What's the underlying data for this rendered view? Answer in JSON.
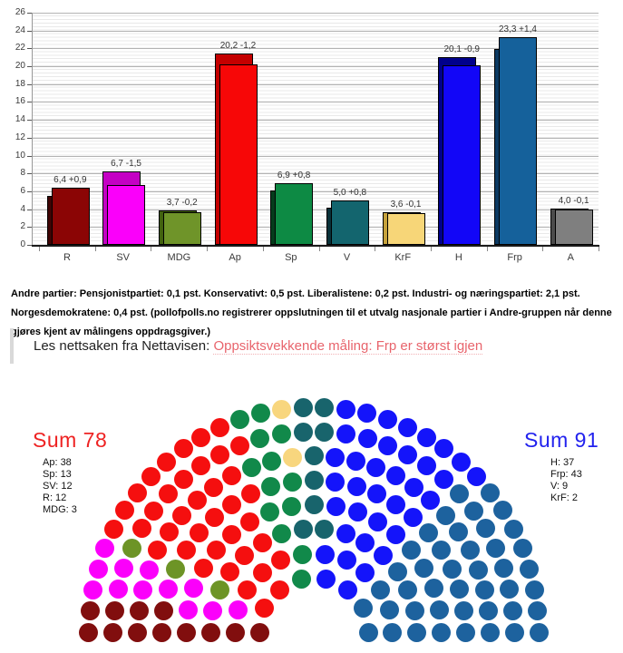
{
  "chart_data": [
    {
      "type": "bar",
      "title": "",
      "xlabel": "",
      "ylabel": "",
      "ylim": [
        0,
        26
      ],
      "ytick_step": 2,
      "grid": "major-and-minor",
      "legend_position": "none",
      "categories": [
        "R",
        "SV",
        "MDG",
        "Ap",
        "Sp",
        "V",
        "KrF",
        "H",
        "Frp",
        "A"
      ],
      "series": [
        {
          "name": "current",
          "values": [
            6.4,
            6.7,
            3.7,
            20.2,
            6.9,
            5.0,
            3.6,
            20.1,
            23.3,
            4.0
          ]
        },
        {
          "name": "previous",
          "values": [
            5.5,
            8.2,
            3.9,
            21.4,
            6.1,
            4.2,
            3.7,
            21.0,
            21.9,
            4.1
          ]
        }
      ],
      "bar_labels": [
        "6,4 +0,9",
        "6,7 -1,5",
        "3,7 -0,2",
        "20,2 -1,2",
        "6,9 +0,8",
        "5,0 +0,8",
        "3,6 -0,1",
        "20,1 -0,9",
        "23,3 +1,4",
        "4,0 -0,1"
      ],
      "colors": {
        "front": [
          "#8b0505",
          "#fa00fa",
          "#6f9429",
          "#f70707",
          "#0d8a44",
          "#13656e",
          "#f7d678",
          "#1206f7",
          "#15619b",
          "#7f7f7f"
        ],
        "back": [
          "#3f0404",
          "#c400c4",
          "#42620f",
          "#c40000",
          "#053c1c",
          "#083138",
          "#c6a23c",
          "#00008b",
          "#0c3a63",
          "#4c4c4c"
        ]
      }
    },
    {
      "type": "parliament",
      "total_seats": 169,
      "parties_in_fill_order": [
        {
          "abbr": "R",
          "seats": 12,
          "color": "#810e0e"
        },
        {
          "abbr": "SV",
          "seats": 12,
          "color": "#fb00fb"
        },
        {
          "abbr": "MDG",
          "seats": 3,
          "color": "#6d9426"
        },
        {
          "abbr": "Ap",
          "seats": 38,
          "color": "#f50f0f"
        },
        {
          "abbr": "Sp",
          "seats": 13,
          "color": "#11894a"
        },
        {
          "abbr": "KrF",
          "seats": 2,
          "color": "#f8d67e"
        },
        {
          "abbr": "V",
          "seats": 9,
          "color": "#18646c"
        },
        {
          "abbr": "H",
          "seats": 37,
          "color": "#1414fa"
        },
        {
          "abbr": "Frp",
          "seats": 43,
          "color": "#1d629e"
        }
      ]
    }
  ],
  "andre_partier_text": "Andre partier: Pensjonistpartiet: 0,1 pst. Konservativt: 0,5 pst. Liberalistene: 0,2 pst. Industri- og næringspartiet: 2,1 pst. Norgesdemokratene: 0,4 pst. (pollofpolls.no registrerer oppslutningen til et utvalg nasjonale partier i Andre-gruppen når denne gjøres kjent av målingens oppdragsgiver.)",
  "blockquote": {
    "lead": "Les nettsaken fra Nettavisen: ",
    "link_text": "Oppsiktsvekkende måling: Frp er størst igjen",
    "link_color": "#e8646c"
  },
  "hemicycle": {
    "left_bloc": {
      "sum_label": "Sum 78",
      "sum_color": "#ee2222",
      "items": [
        "Ap: 38",
        "Sp: 13",
        "SV: 12",
        "R: 12",
        "MDG: 3"
      ]
    },
    "right_bloc": {
      "sum_label": "Sum 91",
      "sum_color": "#2222ee",
      "items": [
        "H: 37",
        "Frp: 43",
        "V: 9",
        "KrF: 2"
      ]
    }
  }
}
